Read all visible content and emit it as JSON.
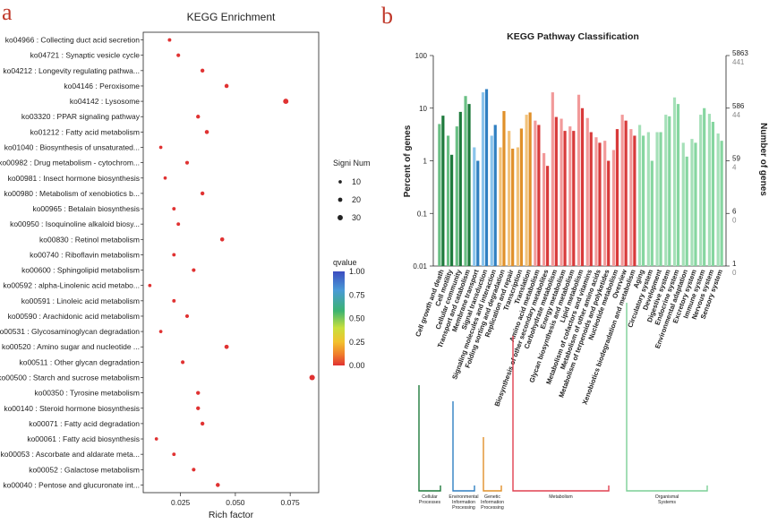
{
  "panels": {
    "a": "a",
    "b": "b"
  },
  "chart_data": [
    {
      "type": "scatter",
      "title": "KEGG Enrichment",
      "xlabel": "Rich factor",
      "ylabel": "",
      "xlim": [
        0.008,
        0.088
      ],
      "xticks": [
        0.025,
        0.05,
        0.075
      ],
      "xtick_labels": [
        "0.025",
        "0.050",
        "0.075"
      ],
      "categories": [
        "ko04966 : Collecting duct acid secretion",
        "ko04721 : Synaptic vesicle cycle",
        "ko04212 : Longevity regulating pathwa...",
        "ko04146 : Peroxisome",
        "ko04142 : Lysosome",
        "ko03320 : PPAR signaling pathway",
        "ko01212 : Fatty acid metabolism",
        "ko01040 : Biosynthesis of unsaturated...",
        "ko00982 : Drug metabolism - cytochrom...",
        "ko00981 : Insect hormone biosynthesis",
        "ko00980 : Metabolism of xenobiotics b...",
        "ko00965 : Betalain biosynthesis",
        "ko00950 : Isoquinoline alkaloid biosy...",
        "ko00830 : Retinol metabolism",
        "ko00740 : Riboflavin metabolism",
        "ko00600 : Sphingolipid metabolism",
        "ko00592 : alpha-Linolenic acid metabo...",
        "ko00591 : Linoleic acid metabolism",
        "ko00590 : Arachidonic acid metabolism",
        "ko00531 : Glycosaminoglycan degradation",
        "ko00520 : Amino sugar and nucleotide ...",
        "ko00511 : Other glycan degradation",
        "ko00500 : Starch and sucrose metabolism",
        "ko00350 : Tyrosine metabolism",
        "ko00140 : Steroid hormone biosynthesis",
        "ko00071 : Fatty acid degradation",
        "ko00061 : Fatty acid biosynthesis",
        "ko00053 : Ascorbate and aldarate meta...",
        "ko00052 : Galactose metabolism",
        "ko00040 : Pentose and glucuronate int..."
      ],
      "rich_factor": [
        0.02,
        0.024,
        0.035,
        0.046,
        0.073,
        0.033,
        0.037,
        0.016,
        0.028,
        0.018,
        0.035,
        0.022,
        0.024,
        0.044,
        0.022,
        0.031,
        0.011,
        0.022,
        0.028,
        0.016,
        0.046,
        0.026,
        0.085,
        0.033,
        0.033,
        0.035,
        0.014,
        0.022,
        0.031,
        0.042
      ],
      "signi_num": [
        12,
        14,
        16,
        18,
        30,
        16,
        18,
        10,
        14,
        10,
        16,
        12,
        12,
        18,
        12,
        14,
        10,
        12,
        14,
        10,
        20,
        14,
        32,
        16,
        16,
        16,
        10,
        12,
        14,
        18
      ],
      "qvalue": [
        0.01,
        0.01,
        0.01,
        0.01,
        0.01,
        0.01,
        0.01,
        0.01,
        0.01,
        0.01,
        0.01,
        0.01,
        0.01,
        0.01,
        0.01,
        0.01,
        0.01,
        0.01,
        0.01,
        0.01,
        0.01,
        0.01,
        0.01,
        0.01,
        0.01,
        0.01,
        0.01,
        0.01,
        0.01,
        0.01
      ],
      "size_legend": {
        "title": "Signi Num",
        "values": [
          10,
          20,
          30
        ],
        "labels": [
          "10",
          "20",
          "30"
        ]
      },
      "color_legend": {
        "title": "qvalue",
        "ticks": [
          1.0,
          0.75,
          0.5,
          0.25,
          0.0
        ],
        "tick_labels": [
          "1.00",
          "0.75",
          "0.50",
          "0.25",
          "0.00"
        ],
        "colors": [
          "#3b4cc0",
          "#4a9ad6",
          "#3cb371",
          "#c8e03c",
          "#f2c12e",
          "#f07f2b",
          "#e03232"
        ]
      },
      "point_color": "#e03232",
      "legend_position": "right"
    },
    {
      "type": "bar",
      "title": "KEGG Pathway Classification",
      "ylabel": "Percent of genes",
      "ylabel_right": "Number of genes",
      "yscale": "log",
      "ylim": [
        0.01,
        100
      ],
      "yticks": [
        0.01,
        0.1,
        1,
        10,
        100
      ],
      "ytick_labels": [
        "0.01",
        "0.1",
        "1",
        "10",
        "100"
      ],
      "right_ticks": [
        {
          "level": 100,
          "upper": "5863",
          "lower": "441"
        },
        {
          "level": 10,
          "upper": "586",
          "lower": "44"
        },
        {
          "level": 1,
          "upper": "59",
          "lower": "4"
        },
        {
          "level": 0.1,
          "upper": "6",
          "lower": "0"
        },
        {
          "level": 0.01,
          "upper": "1",
          "lower": "0"
        }
      ],
      "categories": [
        "Cell growth and death",
        "Cell motility",
        "Cellular community",
        "Transport and catabolism",
        "Membrane transport",
        "Signal transduction",
        "Signaling molecules and interaction",
        "Folding sorting and degradation",
        "Replication and repair",
        "Transcription",
        "Translation",
        "Amino acid metabolism",
        "Biosynthesis of other secondary metabolites",
        "Carbohydrate metabolism",
        "Energy metabolism",
        "Glycan biosynthesis and metabolism",
        "Lipid metabolism",
        "Metabolism of cofactors and vitamins",
        "Metabolism of other amino acids",
        "Metabolism of terpenoids and polyketides",
        "Nucleotide metabolism",
        "Overview",
        "Xenobiotics biodegradation and metabolism",
        "Aging",
        "Circulatory system",
        "Development",
        "Digestive system",
        "Endocrine system",
        "Environmental adaptation",
        "Excretory system",
        "Immune system",
        "Nervous system",
        "Sensory system"
      ],
      "category_group": [
        0,
        0,
        0,
        0,
        1,
        1,
        1,
        2,
        2,
        2,
        2,
        3,
        3,
        3,
        3,
        3,
        3,
        3,
        3,
        3,
        3,
        3,
        3,
        4,
        4,
        4,
        4,
        4,
        4,
        4,
        4,
        4,
        4
      ],
      "series": [
        {
          "name": "light",
          "values": [
            5.0,
            3.0,
            4.5,
            17.0,
            1.8,
            20.0,
            3.0,
            1.8,
            3.7,
            1.8,
            7.5,
            5.8,
            1.4,
            20.0,
            6.3,
            4.5,
            18.0,
            6.5,
            2.8,
            2.4,
            1.6,
            7.5,
            4.0,
            4.8,
            3.5,
            3.5,
            7.5,
            16.0,
            2.2,
            2.6,
            7.5,
            7.8,
            3.3
          ]
        },
        {
          "name": "dark",
          "values": [
            7.2,
            1.3,
            8.5,
            12.0,
            1.0,
            23.0,
            4.8,
            8.8,
            1.7,
            4.1,
            8.3,
            4.8,
            0.8,
            6.8,
            3.7,
            3.7,
            10.0,
            3.5,
            2.2,
            1.0,
            4.0,
            5.8,
            3.0,
            3.0,
            1.0,
            3.5,
            7.0,
            12.0,
            1.2,
            2.2,
            10.0,
            5.5,
            2.4
          ]
        }
      ],
      "groups": [
        {
          "name": "Cellular Processes",
          "lines": [
            "Cellular",
            "Processes"
          ],
          "color": "#1e7a3c",
          "light": "#6abf84",
          "dark": "#1e7a3c"
        },
        {
          "name": "Environmental Information Processing",
          "lines": [
            "Environmental",
            "Information",
            "Processing"
          ],
          "color": "#2f7fc1",
          "light": "#8ac4ec",
          "dark": "#2f7fc1"
        },
        {
          "name": "Genetic Information Processing",
          "lines": [
            "Genetic",
            "Information",
            "Processing"
          ],
          "color": "#e0902a",
          "light": "#f2c27a",
          "dark": "#e0902a"
        },
        {
          "name": "Metabolism",
          "lines": [
            "Metabolism"
          ],
          "color": "#e04050",
          "light": "#f29a9a",
          "dark": "#d83a3a"
        },
        {
          "name": "Organismal Systems",
          "lines": [
            "Organismal",
            "Systems"
          ],
          "color": "#7ccf96",
          "light": "#a5e0b8",
          "dark": "#86d6a0"
        }
      ]
    }
  ]
}
